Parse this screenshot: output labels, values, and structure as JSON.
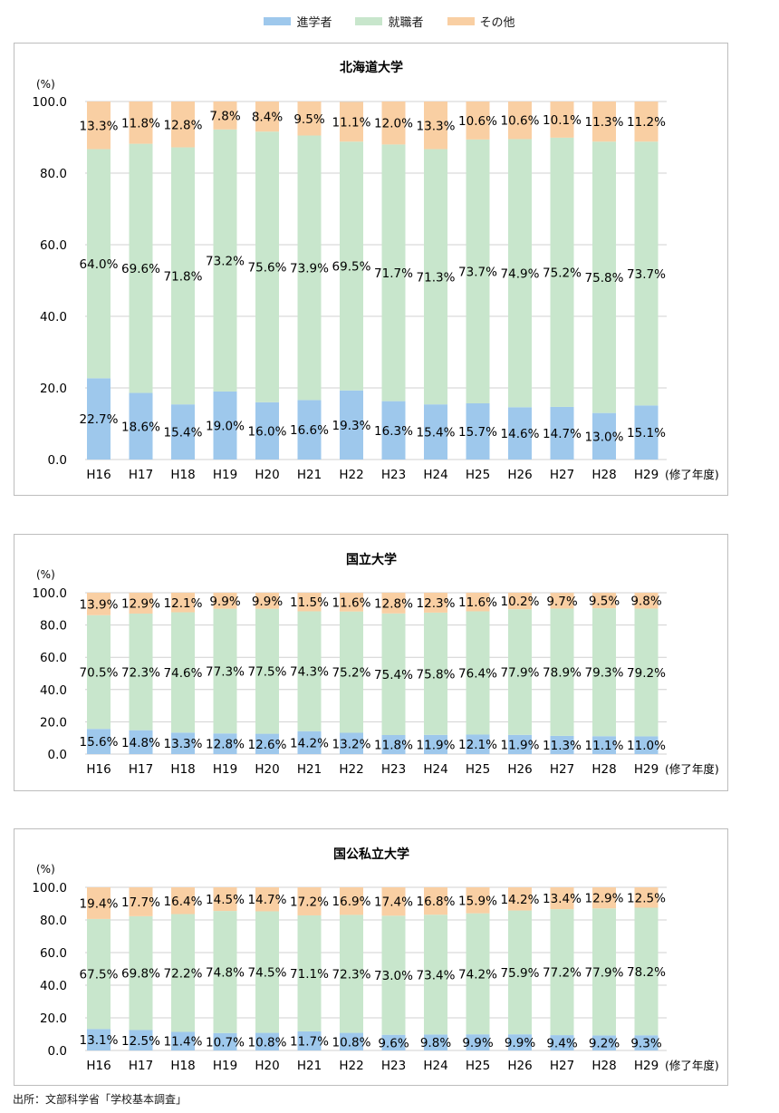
{
  "legend": {
    "items": [
      {
        "label": "進学者",
        "color": "#9ec8ec"
      },
      {
        "label": "就職者",
        "color": "#c8e6cc"
      },
      {
        "label": "その他",
        "color": "#f9cfa3"
      }
    ]
  },
  "source": "出所：文部科学省「学校基本調査」",
  "chart_data": [
    {
      "type": "bar",
      "stacked": true,
      "title": "北海道大学",
      "ylabel": "(%)",
      "xlabel": "(修了年度)",
      "ylim": [
        0,
        100
      ],
      "yticks": [
        "0.0",
        "20.0",
        "40.0",
        "60.0",
        "80.0",
        "100.0"
      ],
      "grid": true,
      "categories": [
        "H16",
        "H17",
        "H18",
        "H19",
        "H20",
        "H21",
        "H22",
        "H23",
        "H24",
        "H25",
        "H26",
        "H27",
        "H28",
        "H29"
      ],
      "series": [
        {
          "name": "進学者",
          "values": [
            22.7,
            18.6,
            15.4,
            19.0,
            16.0,
            16.6,
            19.3,
            16.3,
            15.4,
            15.7,
            14.6,
            14.7,
            13.0,
            15.1
          ],
          "labels": [
            "22.7%",
            "18.6%",
            "15.4%",
            "19.0%",
            "16.0%",
            "16.6%",
            "19.3%",
            "16.3%",
            "15.4%",
            "15.7%",
            "14.6%",
            "14.7%",
            "13.0%",
            "15.1%"
          ]
        },
        {
          "name": "就職者",
          "values": [
            64.0,
            69.6,
            71.8,
            73.2,
            75.6,
            73.9,
            69.5,
            71.7,
            71.3,
            73.7,
            74.9,
            75.2,
            75.8,
            73.7
          ],
          "labels": [
            "64.0%",
            "69.6%",
            "71.8%",
            "73.2%",
            "75.6%",
            "73.9%",
            "69.5%",
            "71.7%",
            "71.3%",
            "73.7%",
            "74.9%",
            "75.2%",
            "75.8%",
            "73.7%"
          ]
        },
        {
          "name": "その他",
          "values": [
            13.3,
            11.8,
            12.8,
            7.8,
            8.4,
            9.5,
            11.1,
            12.0,
            13.3,
            10.6,
            10.6,
            10.1,
            11.3,
            11.2
          ],
          "labels": [
            "13.3%",
            "11.8%",
            "12.8%",
            "7.8%",
            "8.4%",
            "9.5%",
            "11.1%",
            "12.0%",
            "13.3%",
            "10.6%",
            "10.6%",
            "10.1%",
            "11.3%",
            "11.2%"
          ]
        }
      ]
    },
    {
      "type": "bar",
      "stacked": true,
      "title": "国立大学",
      "ylabel": "(%)",
      "xlabel": "(修了年度)",
      "ylim": [
        0,
        100
      ],
      "yticks": [
        "0.0",
        "20.0",
        "40.0",
        "60.0",
        "80.0",
        "100.0"
      ],
      "grid": true,
      "categories": [
        "H16",
        "H17",
        "H18",
        "H19",
        "H20",
        "H21",
        "H22",
        "H23",
        "H24",
        "H25",
        "H26",
        "H27",
        "H28",
        "H29"
      ],
      "series": [
        {
          "name": "進学者",
          "values": [
            15.6,
            14.8,
            13.3,
            12.8,
            12.6,
            14.2,
            13.2,
            11.8,
            11.9,
            12.1,
            11.9,
            11.3,
            11.1,
            11.0
          ],
          "labels": [
            "15.6%",
            "14.8%",
            "13.3%",
            "12.8%",
            "12.6%",
            "14.2%",
            "13.2%",
            "11.8%",
            "11.9%",
            "12.1%",
            "11.9%",
            "11.3%",
            "11.1%",
            "11.0%"
          ]
        },
        {
          "name": "就職者",
          "values": [
            70.5,
            72.3,
            74.6,
            77.3,
            77.5,
            74.3,
            75.2,
            75.4,
            75.8,
            76.4,
            77.9,
            78.9,
            79.3,
            79.2
          ],
          "labels": [
            "70.5%",
            "72.3%",
            "74.6%",
            "77.3%",
            "77.5%",
            "74.3%",
            "75.2%",
            "75.4%",
            "75.8%",
            "76.4%",
            "77.9%",
            "78.9%",
            "79.3%",
            "79.2%"
          ]
        },
        {
          "name": "その他",
          "values": [
            13.9,
            12.9,
            12.1,
            9.9,
            9.9,
            11.5,
            11.6,
            12.8,
            12.3,
            11.6,
            10.2,
            9.7,
            9.5,
            9.8
          ],
          "labels": [
            "13.9%",
            "12.9%",
            "12.1%",
            "9.9%",
            "9.9%",
            "11.5%",
            "11.6%",
            "12.8%",
            "12.3%",
            "11.6%",
            "10.2%",
            "9.7%",
            "9.5%",
            "9.8%"
          ]
        }
      ]
    },
    {
      "type": "bar",
      "stacked": true,
      "title": "国公私立大学",
      "ylabel": "(%)",
      "xlabel": "(修了年度)",
      "ylim": [
        0,
        100
      ],
      "yticks": [
        "0.0",
        "20.0",
        "40.0",
        "60.0",
        "80.0",
        "100.0"
      ],
      "grid": true,
      "categories": [
        "H16",
        "H17",
        "H18",
        "H19",
        "H20",
        "H21",
        "H22",
        "H23",
        "H24",
        "H25",
        "H26",
        "H27",
        "H28",
        "H29"
      ],
      "series": [
        {
          "name": "進学者",
          "values": [
            13.1,
            12.5,
            11.4,
            10.7,
            10.8,
            11.7,
            10.8,
            9.6,
            9.8,
            9.9,
            9.9,
            9.4,
            9.2,
            9.3
          ],
          "labels": [
            "13.1%",
            "12.5%",
            "11.4%",
            "10.7%",
            "10.8%",
            "11.7%",
            "10.8%",
            "9.6%",
            "9.8%",
            "9.9%",
            "9.9%",
            "9.4%",
            "9.2%",
            "9.3%"
          ]
        },
        {
          "name": "就職者",
          "values": [
            67.5,
            69.8,
            72.2,
            74.8,
            74.5,
            71.1,
            72.3,
            73.0,
            73.4,
            74.2,
            75.9,
            77.2,
            77.9,
            78.2
          ],
          "labels": [
            "67.5%",
            "69.8%",
            "72.2%",
            "74.8%",
            "74.5%",
            "71.1%",
            "72.3%",
            "73.0%",
            "73.4%",
            "74.2%",
            "75.9%",
            "77.2%",
            "77.9%",
            "78.2%"
          ]
        },
        {
          "name": "その他",
          "values": [
            19.4,
            17.7,
            16.4,
            14.5,
            14.7,
            17.2,
            16.9,
            17.4,
            16.8,
            15.9,
            14.2,
            13.4,
            12.9,
            12.5
          ],
          "labels": [
            "19.4%",
            "17.7%",
            "16.4%",
            "14.5%",
            "14.7%",
            "17.2%",
            "16.9%",
            "17.4%",
            "16.8%",
            "15.9%",
            "14.2%",
            "13.4%",
            "12.9%",
            "12.5%"
          ]
        }
      ]
    }
  ]
}
